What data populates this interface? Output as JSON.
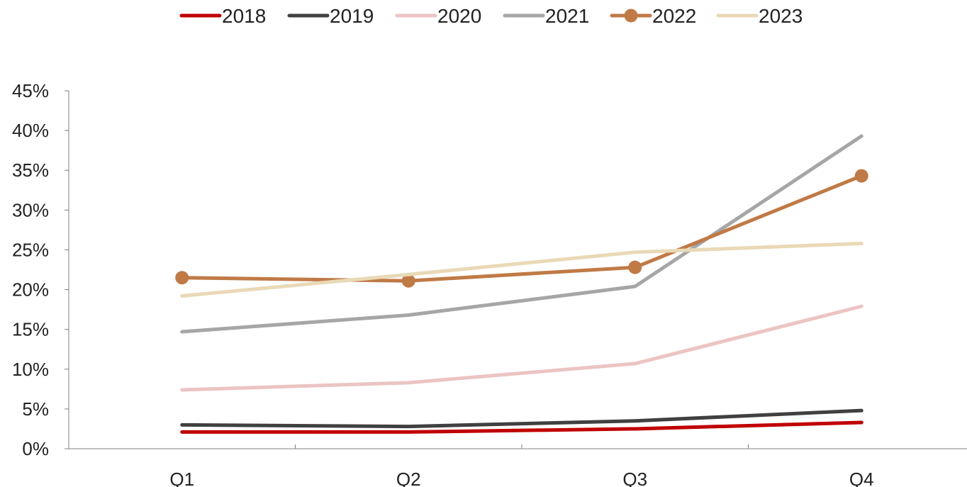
{
  "chart_data": {
    "type": "line",
    "categories": [
      "Q1",
      "Q2",
      "Q3",
      "Q4"
    ],
    "yticks": [
      "0%",
      "5%",
      "10%",
      "15%",
      "20%",
      "25%",
      "30%",
      "35%",
      "40%",
      "45%"
    ],
    "ylim": [
      0,
      45
    ],
    "grid": false,
    "legend_position": "top",
    "series": [
      {
        "name": "2018",
        "color": "#c00000",
        "marker": false,
        "values": [
          2.1,
          2.1,
          2.5,
          3.3
        ]
      },
      {
        "name": "2019",
        "color": "#404040",
        "marker": false,
        "values": [
          3.0,
          2.8,
          3.5,
          4.8
        ]
      },
      {
        "name": "2020",
        "color": "#ecc4c4",
        "marker": false,
        "values": [
          7.4,
          8.3,
          10.7,
          17.9
        ]
      },
      {
        "name": "2021",
        "color": "#a6a6a6",
        "marker": false,
        "values": [
          14.7,
          16.8,
          20.4,
          39.3
        ]
      },
      {
        "name": "2022",
        "color": "#c07a46",
        "marker": true,
        "values": [
          21.5,
          21.1,
          22.8,
          34.3
        ]
      },
      {
        "name": "2023",
        "color": "#e9d9b6",
        "marker": false,
        "values": [
          19.2,
          21.9,
          24.7,
          25.8
        ]
      }
    ]
  }
}
